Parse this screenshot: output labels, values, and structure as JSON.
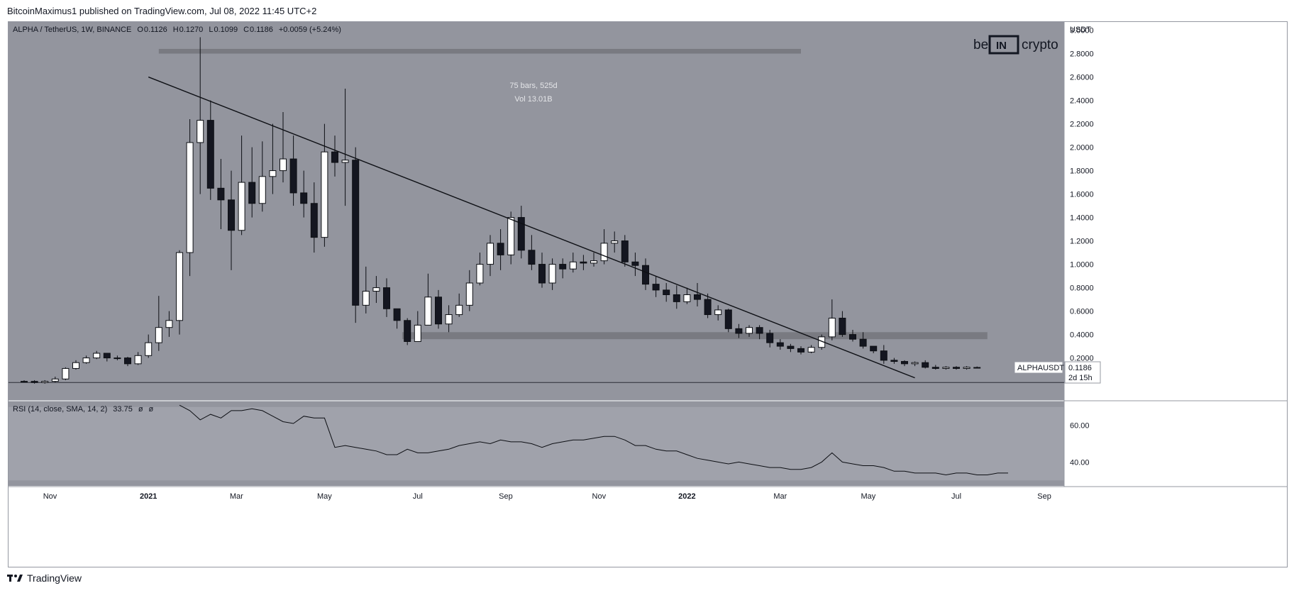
{
  "header": {
    "published_by": "BitcoinMaximus1 published on TradingView.com, Jul 08, 2022 11:45 UTC+2"
  },
  "footer": {
    "brand": "TradingView"
  },
  "colors": {
    "pane_bg": "#93959e",
    "rsi_band": "#a0a2ab",
    "candle_up": "#ffffff",
    "candle_down": "#141620",
    "line": "#0d0f14",
    "zone": "#707277"
  },
  "symbol_info": {
    "title": "ALPHA / TetherUS, 1W, BINANCE",
    "o_label": "O",
    "o": "0.1126",
    "h_label": "H",
    "h": "0.1270",
    "l_label": "L",
    "l": "0.1099",
    "c_label": "C",
    "c": "0.1186",
    "change": "+0.0059 (+5.24%)"
  },
  "logo": {
    "left": "be",
    "mid": "IN",
    "right": "crypto"
  },
  "measure": {
    "bars": "75 bars, 525d",
    "vol": "Vol 13.01B"
  },
  "price_badge": {
    "symbol": "ALPHAUSDT",
    "price": "0.1186",
    "countdown": "2d 15h"
  },
  "rsi_legend": {
    "label": "RSI (14, close, SMA, 14, 2)",
    "value": "33.75",
    "extra1": "ø",
    "extra2": "ø"
  },
  "chart_data": [
    {
      "type": "candlestick",
      "title": "ALPHA / TetherUS, 1W, BINANCE",
      "y_axis_unit": "USDT",
      "ylim": [
        -0.16,
        3.07
      ],
      "y_ticks": [
        0.2,
        0.4,
        0.6,
        0.8,
        1.0,
        1.2,
        1.4,
        1.6,
        1.8,
        2.0,
        2.2,
        2.4,
        2.6,
        2.8,
        3.0
      ],
      "y_tick_labels": [
        "0.2000",
        "0.4000",
        "0.6000",
        "0.8000",
        "1.0000",
        "1.2000",
        "1.4000",
        "1.6000",
        "1.8000",
        "2.0000",
        "2.2000",
        "2.4000",
        "2.6000",
        "2.8000",
        "3.0000"
      ],
      "x_tick_labels": [
        "Nov",
        "2021",
        "Mar",
        "May",
        "Jul",
        "Sep",
        "Nov",
        "2022",
        "Mar",
        "May",
        "Jul",
        "Sep"
      ],
      "grid": false,
      "candles": [
        [
          0.0,
          0.0,
          0.01,
          -0.01
        ],
        [
          0.0,
          -0.01,
          0.01,
          -0.02
        ],
        [
          -0.01,
          0.0,
          0.01,
          -0.02
        ],
        [
          0.0,
          0.02,
          0.04,
          -0.01
        ],
        [
          0.02,
          0.11,
          0.12,
          0.01
        ],
        [
          0.11,
          0.16,
          0.18,
          0.1
        ],
        [
          0.16,
          0.2,
          0.22,
          0.15
        ],
        [
          0.2,
          0.24,
          0.26,
          0.19
        ],
        [
          0.24,
          0.2,
          0.24,
          0.17
        ],
        [
          0.2,
          0.2,
          0.22,
          0.18
        ],
        [
          0.2,
          0.15,
          0.21,
          0.13
        ],
        [
          0.15,
          0.22,
          0.25,
          0.14
        ],
        [
          0.22,
          0.33,
          0.4,
          0.2
        ],
        [
          0.33,
          0.46,
          0.73,
          0.26
        ],
        [
          0.46,
          0.52,
          0.6,
          0.38
        ],
        [
          0.52,
          1.1,
          1.12,
          0.4
        ],
        [
          1.1,
          2.04,
          2.24,
          0.9
        ],
        [
          2.04,
          2.23,
          2.94,
          1.6
        ],
        [
          2.23,
          1.65,
          2.4,
          1.55
        ],
        [
          1.65,
          1.55,
          1.9,
          1.3
        ],
        [
          1.55,
          1.29,
          1.8,
          0.95
        ],
        [
          1.29,
          1.7,
          2.1,
          1.25
        ],
        [
          1.7,
          1.52,
          2.0,
          1.4
        ],
        [
          1.52,
          1.75,
          2.05,
          1.45
        ],
        [
          1.75,
          1.8,
          2.2,
          1.6
        ],
        [
          1.8,
          1.9,
          2.3,
          1.7
        ],
        [
          1.9,
          1.61,
          2.1,
          1.5
        ],
        [
          1.61,
          1.52,
          1.8,
          1.4
        ],
        [
          1.52,
          1.23,
          1.7,
          1.1
        ],
        [
          1.23,
          1.96,
          2.2,
          1.15
        ],
        [
          1.96,
          1.87,
          2.1,
          1.75
        ],
        [
          1.87,
          1.89,
          2.5,
          1.5
        ],
        [
          1.89,
          0.65,
          2.0,
          0.5
        ],
        [
          0.65,
          0.77,
          0.98,
          0.58
        ],
        [
          0.77,
          0.8,
          0.9,
          0.67
        ],
        [
          0.8,
          0.62,
          0.88,
          0.55
        ],
        [
          0.62,
          0.52,
          0.6,
          0.45
        ],
        [
          0.52,
          0.34,
          0.54,
          0.31
        ],
        [
          0.34,
          0.48,
          0.6,
          0.4
        ],
        [
          0.48,
          0.72,
          0.92,
          0.5
        ],
        [
          0.72,
          0.49,
          0.78,
          0.45
        ],
        [
          0.49,
          0.57,
          0.65,
          0.42
        ],
        [
          0.57,
          0.65,
          0.75,
          0.55
        ],
        [
          0.65,
          0.84,
          0.95,
          0.6
        ],
        [
          0.84,
          1.0,
          1.1,
          0.82
        ],
        [
          1.0,
          1.18,
          1.25,
          0.9
        ],
        [
          1.18,
          1.08,
          1.3,
          0.95
        ],
        [
          1.08,
          1.4,
          1.45,
          1.0
        ],
        [
          1.4,
          1.12,
          1.5,
          1.05
        ],
        [
          1.12,
          1.0,
          1.25,
          0.95
        ],
        [
          1.0,
          0.84,
          1.1,
          0.8
        ],
        [
          0.84,
          1.0,
          1.05,
          0.78
        ],
        [
          1.0,
          0.96,
          1.05,
          0.88
        ],
        [
          0.96,
          1.02,
          1.1,
          0.93
        ],
        [
          1.02,
          1.01,
          1.08,
          0.95
        ],
        [
          1.01,
          1.03,
          1.1,
          0.98
        ],
        [
          1.03,
          1.18,
          1.3,
          1.0
        ],
        [
          1.18,
          1.2,
          1.28,
          1.1
        ],
        [
          1.2,
          1.02,
          1.25,
          0.98
        ],
        [
          1.02,
          0.99,
          1.1,
          0.9
        ],
        [
          0.99,
          0.83,
          1.05,
          0.78
        ],
        [
          0.83,
          0.78,
          0.9,
          0.72
        ],
        [
          0.78,
          0.74,
          0.84,
          0.68
        ],
        [
          0.74,
          0.68,
          0.82,
          0.62
        ],
        [
          0.68,
          0.74,
          0.8,
          0.66
        ],
        [
          0.74,
          0.7,
          0.84,
          0.64
        ],
        [
          0.7,
          0.57,
          0.75,
          0.54
        ],
        [
          0.57,
          0.61,
          0.65,
          0.52
        ],
        [
          0.61,
          0.45,
          0.62,
          0.42
        ],
        [
          0.45,
          0.41,
          0.49,
          0.37
        ],
        [
          0.41,
          0.46,
          0.48,
          0.38
        ],
        [
          0.46,
          0.41,
          0.48,
          0.36
        ],
        [
          0.41,
          0.33,
          0.44,
          0.29
        ],
        [
          0.33,
          0.3,
          0.36,
          0.27
        ],
        [
          0.3,
          0.28,
          0.32,
          0.25
        ],
        [
          0.28,
          0.25,
          0.3,
          0.23
        ],
        [
          0.25,
          0.29,
          0.31,
          0.24
        ],
        [
          0.29,
          0.38,
          0.4,
          0.27
        ],
        [
          0.38,
          0.54,
          0.7,
          0.35
        ],
        [
          0.54,
          0.4,
          0.6,
          0.38
        ],
        [
          0.4,
          0.36,
          0.44,
          0.34
        ],
        [
          0.36,
          0.3,
          0.42,
          0.28
        ],
        [
          0.3,
          0.26,
          0.3,
          0.24
        ],
        [
          0.26,
          0.18,
          0.31,
          0.15
        ],
        [
          0.18,
          0.17,
          0.2,
          0.15
        ],
        [
          0.17,
          0.15,
          0.18,
          0.13
        ],
        [
          0.15,
          0.16,
          0.17,
          0.13
        ],
        [
          0.16,
          0.12,
          0.18,
          0.11
        ],
        [
          0.12,
          0.11,
          0.14,
          0.1
        ],
        [
          0.11,
          0.12,
          0.13,
          0.1
        ],
        [
          0.12,
          0.11,
          0.13,
          0.1
        ],
        [
          0.11,
          0.12,
          0.13,
          0.1
        ],
        [
          0.1126,
          0.1186,
          0.127,
          0.1099
        ]
      ],
      "candle_format": [
        "open",
        "close",
        "high",
        "low"
      ],
      "trendline": [
        [
          12.0,
          2.6
        ],
        [
          86.0,
          0.03
        ]
      ],
      "zones": [
        {
          "from_index": 13.0,
          "to_index": 75.0,
          "y_low": 2.8,
          "y_high": 2.84
        },
        {
          "from_index": 36.5,
          "to_index": 93.0,
          "y_low": 0.36,
          "y_high": 0.42
        }
      ],
      "horizontal_line": -0.01
    },
    {
      "type": "line",
      "name": "RSI (14, close, SMA, 14, 2)",
      "ylim": [
        27,
        73
      ],
      "y_ticks": [
        40,
        60
      ],
      "y_tick_labels": [
        "40.00",
        "60.00"
      ],
      "band": [
        30,
        70
      ],
      "start_index": 15,
      "values": [
        71,
        68,
        63,
        66,
        64,
        68,
        68,
        69,
        68,
        65,
        62,
        61,
        65,
        64,
        64,
        48,
        49,
        48,
        47,
        46,
        44,
        44,
        47,
        45,
        45,
        46,
        47,
        49,
        50,
        51,
        50,
        52,
        51,
        51,
        50,
        48,
        50,
        51,
        52,
        52,
        53,
        54,
        54,
        52,
        49,
        49,
        47,
        46,
        46,
        44,
        42,
        41,
        40,
        39,
        40,
        39,
        38,
        37,
        37,
        36,
        36,
        37,
        40,
        45,
        40,
        39,
        38,
        38,
        37,
        35,
        35,
        34,
        34,
        34,
        33,
        34,
        34,
        33,
        33,
        34,
        34
      ]
    }
  ]
}
